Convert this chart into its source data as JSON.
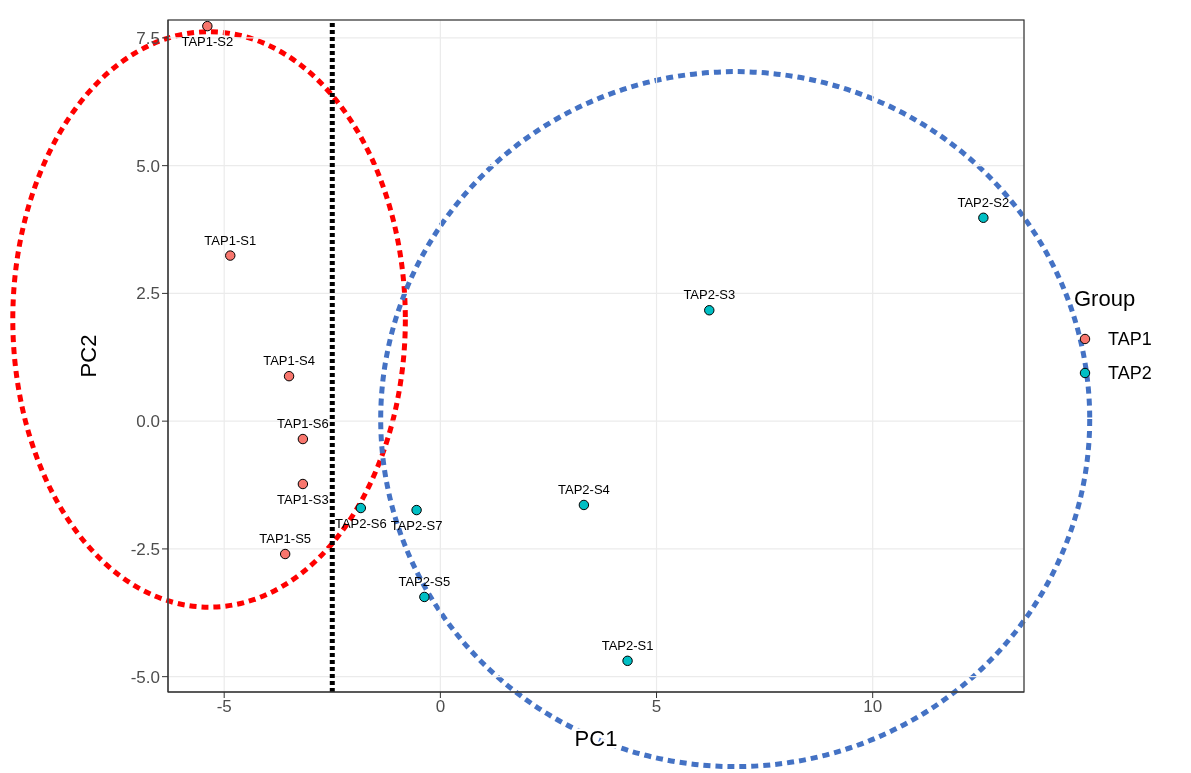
{
  "chart_data": {
    "type": "scatter",
    "xlabel": "PC1",
    "ylabel": "PC2",
    "legend_title": "Group",
    "xlim": [
      -6.3,
      13.5
    ],
    "ylim": [
      -5.3,
      7.85
    ],
    "xticks": [
      -5,
      0,
      5,
      10
    ],
    "yticks": [
      {
        "value": -5,
        "label": "-5.0"
      },
      {
        "value": -2.5,
        "label": "-2.5"
      },
      {
        "value": 0,
        "label": "0.0"
      },
      {
        "value": 2.5,
        "label": "2.5"
      },
      {
        "value": 5,
        "label": "5.0"
      },
      {
        "value": 7.5,
        "label": "7.5"
      }
    ],
    "grid": true,
    "legend": "right",
    "marker": "circle",
    "series": [
      {
        "name": "TAP1",
        "color": "#f8766d",
        "x": [
          -4.86,
          -5.39,
          -3.18,
          -3.5,
          -3.59,
          -3.18
        ],
        "values": [
          3.24,
          7.73,
          -1.23,
          0.88,
          -2.6,
          -0.35
        ]
      },
      {
        "name": "TAP2",
        "color": "#00bfc4",
        "x": [
          4.33,
          12.56,
          6.22,
          3.32,
          -0.37,
          -1.84,
          -0.55
        ],
        "values": [
          -4.69,
          3.98,
          2.17,
          -1.64,
          -3.44,
          -1.7,
          -1.74
        ]
      }
    ],
    "ref_lines": [
      {
        "axis": "x",
        "value": -2.5,
        "color": "#000000",
        "line_style": "dotted"
      }
    ],
    "annotations": [
      {
        "text": "TAP1-S1",
        "x": -4.86,
        "y": 3.24
      },
      {
        "text": "TAP1-S2",
        "x": -5.39,
        "y": 7.73
      },
      {
        "text": "TAP1-S3",
        "x": -3.18,
        "y": -1.23
      },
      {
        "text": "TAP1-S4",
        "x": -3.5,
        "y": 0.88
      },
      {
        "text": "TAP1-S5",
        "x": -3.59,
        "y": -2.6
      },
      {
        "text": "TAP1-S6",
        "x": -3.18,
        "y": -0.35
      },
      {
        "text": "TAP2-S1",
        "x": 4.33,
        "y": -4.69
      },
      {
        "text": "TAP2-S2",
        "x": 12.56,
        "y": 3.98
      },
      {
        "text": "TAP2-S3",
        "x": 6.22,
        "y": 2.17
      },
      {
        "text": "TAP2-S4",
        "x": 3.32,
        "y": -1.64
      },
      {
        "text": "TAP2-S5",
        "x": -0.37,
        "y": -3.44
      },
      {
        "text": "TAP2-S6",
        "x": -1.84,
        "y": -1.7
      },
      {
        "text": "TAP2-S7",
        "x": -0.55,
        "y": -1.74
      }
    ]
  }
}
